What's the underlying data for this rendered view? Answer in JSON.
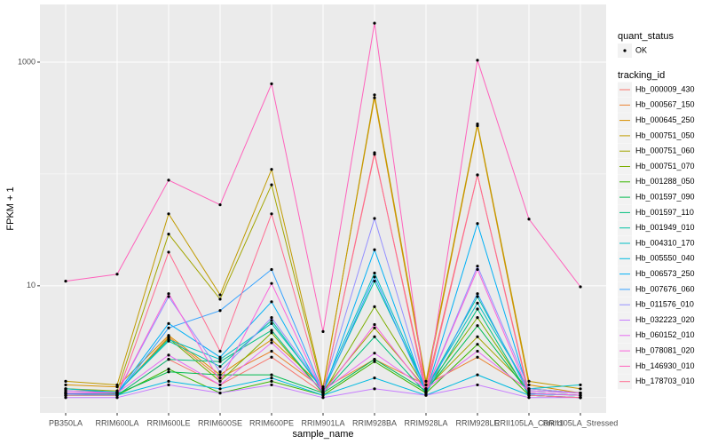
{
  "chart_data": {
    "type": "line",
    "log_y": true,
    "grid": true,
    "x_label": "sample_name",
    "y_label": "FPKM + 1",
    "categories": [
      "PB350LA",
      "RRIM600LA",
      "RRIM600LE",
      "RRIM600SE",
      "RRIM600PE",
      "RRIM901LA",
      "RRIM928BA",
      "RRIM928LA",
      "RRIM928LE",
      "RRII105LA_Control",
      "RRII105LA_Stressed"
    ],
    "ylim": [
      0.73,
      3280
    ],
    "yticks": [
      10,
      1000
    ],
    "y_minor_grid": [
      1,
      100
    ],
    "status_legend": {
      "title": "quant_status",
      "entries": [
        "OK"
      ]
    },
    "legend_title": "tracking_id",
    "series": [
      {
        "name": "Hb_000009_430",
        "color": "#F8766D",
        "values": [
          1.1,
          1.05,
          2.2,
          1.3,
          2.3,
          1.1,
          150,
          1.2,
          98,
          1.1,
          1.05
        ]
      },
      {
        "name": "Hb_000567_150",
        "color": "#EA8331",
        "values": [
          1.2,
          1.1,
          3.5,
          1.5,
          2.6,
          1.2,
          2.2,
          1.3,
          2.3,
          1.2,
          1.1
        ]
      },
      {
        "name": "Hb_000645_250",
        "color": "#D89000",
        "values": [
          1.3,
          1.25,
          3.6,
          1.6,
          3.3,
          1.25,
          480,
          1.3,
          270,
          1.3,
          1.1
        ]
      },
      {
        "name": "Hb_000751_050",
        "color": "#C09B00",
        "values": [
          1.4,
          1.3,
          44,
          8.3,
          110,
          1.2,
          510,
          1.4,
          280,
          1.4,
          1.2
        ]
      },
      {
        "name": "Hb_000751_060",
        "color": "#A3A500",
        "values": [
          1.2,
          1.15,
          29,
          7.6,
          80,
          1.15,
          4.2,
          1.2,
          3.5,
          1.2,
          1.1
        ]
      },
      {
        "name": "Hb_000751_070",
        "color": "#7CAE00",
        "values": [
          1.1,
          1.1,
          3.4,
          1.4,
          3.8,
          1.1,
          6.5,
          1.2,
          5.2,
          1.1,
          1.05
        ]
      },
      {
        "name": "Hb_001288_050",
        "color": "#39B600",
        "values": [
          1.05,
          1.05,
          1.8,
          1.1,
          1.4,
          1.05,
          2.1,
          1.1,
          3.0,
          1.05,
          1.0
        ]
      },
      {
        "name": "Hb_001597_090",
        "color": "#00BB4E",
        "values": [
          1.1,
          1.08,
          1.7,
          1.6,
          1.6,
          1.1,
          2.2,
          1.15,
          4.4,
          1.1,
          1.05
        ]
      },
      {
        "name": "Hb_001597_110",
        "color": "#00BF7D",
        "values": [
          1.05,
          1.05,
          2.2,
          2.1,
          4.0,
          1.1,
          3.5,
          1.1,
          6.2,
          1.05,
          1.0
        ]
      },
      {
        "name": "Hb_001949_010",
        "color": "#00C1A3",
        "values": [
          1.15,
          1.12,
          3.2,
          1.9,
          4.9,
          1.15,
          11,
          1.2,
          8,
          1.15,
          1.1
        ]
      },
      {
        "name": "Hb_004310_170",
        "color": "#00BFC4",
        "values": [
          1.2,
          1.12,
          3.3,
          2.2,
          4.6,
          1.2,
          13,
          1.2,
          7,
          1.2,
          1.3
        ]
      },
      {
        "name": "Hb_005550_040",
        "color": "#00BAE0",
        "values": [
          1.05,
          1.05,
          1.4,
          1.2,
          1.5,
          1.05,
          1.5,
          1.05,
          1.6,
          1.05,
          1.0
        ]
      },
      {
        "name": "Hb_006573_250",
        "color": "#00B0F6",
        "values": [
          1.1,
          1.1,
          4.6,
          2.3,
          7.2,
          1.1,
          21,
          1.1,
          36,
          1.1,
          1.05
        ]
      },
      {
        "name": "Hb_007676_060",
        "color": "#35A2FF",
        "values": [
          1.08,
          1.06,
          4.2,
          6,
          14,
          1.12,
          12,
          1.1,
          8.5,
          1.08,
          1.05
        ]
      },
      {
        "name": "Hb_011576_010",
        "color": "#9590FF",
        "values": [
          1.1,
          1.1,
          8,
          1.7,
          5.2,
          1.2,
          40,
          1.15,
          15,
          1.2,
          1.1
        ]
      },
      {
        "name": "Hb_032223_020",
        "color": "#C77CFF",
        "values": [
          1.0,
          1.0,
          1.3,
          1.1,
          1.3,
          1.0,
          1.2,
          1.05,
          1.3,
          1.0,
          1.0
        ]
      },
      {
        "name": "Hb_060152_010",
        "color": "#E76BF3",
        "values": [
          1.15,
          1.1,
          2.4,
          1.3,
          3.1,
          1.15,
          2.5,
          1.2,
          2.6,
          1.15,
          1.1
        ]
      },
      {
        "name": "Hb_078081_020",
        "color": "#FA62DB",
        "values": [
          1.1,
          1.1,
          8.5,
          1.4,
          10.5,
          1.1,
          4.5,
          1.15,
          14,
          1.1,
          1.05
        ]
      },
      {
        "name": "Hb_146930_010",
        "color": "#FF62BC",
        "values": [
          11,
          12.7,
          88,
          53,
          640,
          3.9,
          2230,
          1.06,
          1040,
          39.5,
          9.8
        ]
      },
      {
        "name": "Hb_178703_010",
        "color": "#FF6C91",
        "values": [
          1.05,
          1.05,
          20,
          2.6,
          44,
          1.1,
          155,
          1.1,
          98,
          1.05,
          1.0
        ]
      }
    ]
  }
}
